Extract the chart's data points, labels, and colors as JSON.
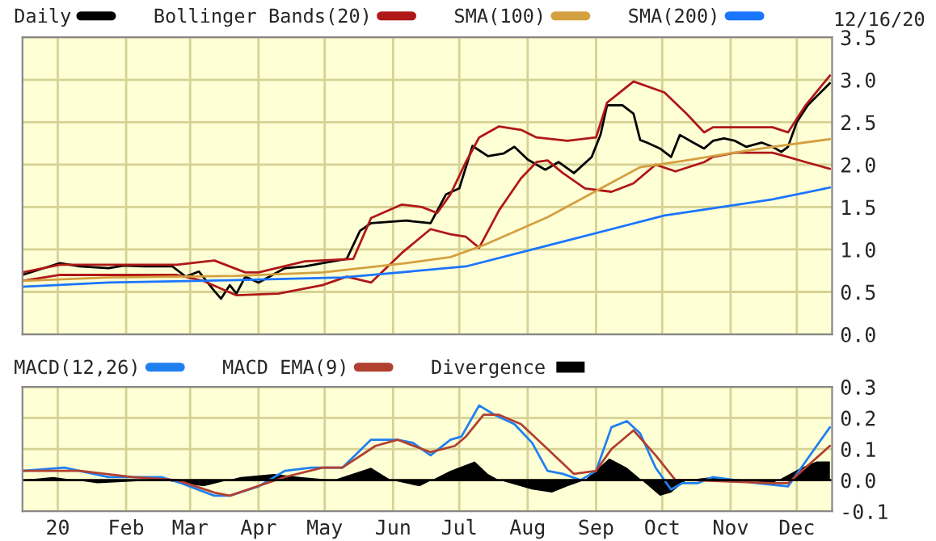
{
  "chart_data": [
    {
      "type": "line",
      "legend": "top",
      "grid": true,
      "tick_labels": "y",
      "marker": "none",
      "line_style": "solid",
      "annotations": [
        "12/16/20"
      ],
      "xlim": [
        "2019-12-16",
        "2020-12-17"
      ],
      "ylim": [
        0.0,
        3.5
      ],
      "yticks": [
        {
          "value": 0,
          "label": "0.0"
        },
        0.5,
        {
          "value": 1,
          "label": "1.0"
        },
        1.5,
        {
          "value": 2,
          "label": "2.0"
        },
        2.5,
        {
          "value": 3,
          "label": "3.0"
        },
        3.5
      ],
      "xticks": [
        {
          "value": "2020-01-01",
          "label": null
        },
        {
          "value": "2020-02-01",
          "label": null
        },
        {
          "value": "2020-03-01",
          "label": null
        },
        {
          "value": "2020-04-01",
          "label": null
        },
        {
          "value": "2020-05-01",
          "label": null
        },
        {
          "value": "2020-06-01",
          "label": null
        },
        {
          "value": "2020-07-01",
          "label": null
        },
        {
          "value": "2020-08-01",
          "label": null
        },
        {
          "value": "2020-09-01",
          "label": null
        },
        {
          "value": "2020-10-01",
          "label": null
        },
        {
          "value": "2020-11-01",
          "label": null
        },
        {
          "value": "2020-12-01",
          "label": null
        }
      ],
      "series": [
        {
          "name": "Daily",
          "color": "#000000",
          "x": [
            "2019-12-16",
            "2020-01-02",
            "2020-01-11",
            "2020-01-24",
            "2020-01-31",
            "2020-02-09",
            "2020-02-22",
            "2020-02-28",
            "2020-03-05",
            "2020-03-12",
            "2020-03-15",
            "2020-03-19",
            "2020-03-22",
            "2020-03-26",
            "2020-04-01",
            "2020-04-06",
            "2020-04-13",
            "2020-04-22",
            "2020-04-30",
            "2020-05-11",
            "2020-05-17",
            "2020-05-22",
            "2020-06-07",
            "2020-06-18",
            "2020-06-25",
            "2020-07-01",
            "2020-07-07",
            "2020-07-14",
            "2020-07-21",
            "2020-07-26",
            "2020-08-01",
            "2020-08-09",
            "2020-08-15",
            "2020-08-22",
            "2020-08-30",
            "2020-09-03",
            "2020-09-06",
            "2020-09-13",
            "2020-09-18",
            "2020-09-21",
            "2020-09-24",
            "2020-09-30",
            "2020-10-05",
            "2020-10-09",
            "2020-10-15",
            "2020-10-20",
            "2020-10-24",
            "2020-10-29",
            "2020-11-03",
            "2020-11-08",
            "2020-11-15",
            "2020-11-20",
            "2020-11-24",
            "2020-11-27",
            "2020-12-01",
            "2020-12-06",
            "2020-12-11",
            "2020-12-16"
          ],
          "values": [
            0.7,
            0.84,
            0.8,
            0.78,
            0.81,
            0.8,
            0.8,
            0.68,
            0.74,
            0.51,
            0.42,
            0.58,
            0.48,
            0.68,
            0.61,
            0.68,
            0.78,
            0.8,
            0.84,
            0.89,
            1.22,
            1.31,
            1.34,
            1.31,
            1.65,
            1.72,
            2.22,
            2.1,
            2.13,
            2.21,
            2.06,
            1.94,
            2.03,
            1.9,
            2.09,
            2.35,
            2.7,
            2.7,
            2.6,
            2.29,
            2.26,
            2.19,
            2.09,
            2.35,
            2.26,
            2.19,
            2.28,
            2.31,
            2.28,
            2.21,
            2.26,
            2.21,
            2.15,
            2.21,
            2.5,
            2.7,
            2.83,
            2.96
          ]
        },
        {
          "name": "Bollinger Bands(20)",
          "color": "#b01818",
          "x": [
            "2019-12-16",
            "2020-01-02",
            "2020-02-24",
            "2020-03-12",
            "2020-03-26",
            "2020-04-01",
            "2020-04-22",
            "2020-05-14",
            "2020-05-22",
            "2020-06-05",
            "2020-06-14",
            "2020-06-21",
            "2020-06-27",
            "2020-07-04",
            "2020-07-10",
            "2020-07-19",
            "2020-07-29",
            "2020-08-05",
            "2020-08-19",
            "2020-09-01",
            "2020-09-06",
            "2020-09-18",
            "2020-10-02",
            "2020-10-12",
            "2020-10-20",
            "2020-10-24",
            "2020-11-20",
            "2020-11-27",
            "2020-12-05",
            "2020-12-16"
          ],
          "values": [
            0.73,
            0.82,
            0.82,
            0.87,
            0.73,
            0.73,
            0.86,
            0.89,
            1.37,
            1.53,
            1.5,
            1.43,
            1.65,
            2.03,
            2.32,
            2.45,
            2.41,
            2.32,
            2.28,
            2.32,
            2.73,
            2.98,
            2.85,
            2.6,
            2.38,
            2.44,
            2.44,
            2.38,
            2.7,
            3.05
          ]
        },
        {
          "color": "#b01818",
          "x": [
            "2019-12-16",
            "2020-01-02",
            "2020-02-24",
            "2020-03-07",
            "2020-03-22",
            "2020-04-10",
            "2020-04-30",
            "2020-05-11",
            "2020-05-22",
            "2020-06-05",
            "2020-06-18",
            "2020-06-27",
            "2020-07-04",
            "2020-07-10",
            "2020-07-19",
            "2020-07-29",
            "2020-08-05",
            "2020-08-10",
            "2020-08-17",
            "2020-08-27",
            "2020-09-08",
            "2020-09-18",
            "2020-09-28",
            "2020-10-07",
            "2020-10-20",
            "2020-10-24",
            "2020-11-03",
            "2020-11-20",
            "2020-11-27",
            "2020-12-05",
            "2020-12-16"
          ],
          "values": [
            0.63,
            0.7,
            0.7,
            0.63,
            0.46,
            0.48,
            0.58,
            0.68,
            0.61,
            0.96,
            1.24,
            1.18,
            1.15,
            1.02,
            1.46,
            1.84,
            2.03,
            2.05,
            1.9,
            1.72,
            1.68,
            1.78,
            2.0,
            1.92,
            2.03,
            2.09,
            2.14,
            2.14,
            2.09,
            2.03,
            1.95
          ]
        },
        {
          "name": "SMA(100)",
          "color": "#d4a040",
          "x": [
            "2019-12-16",
            "2020-01-24",
            "2020-03-22",
            "2020-04-30",
            "2020-06-07",
            "2020-06-27",
            "2020-07-12",
            "2020-08-10",
            "2020-09-21",
            "2020-10-12",
            "2020-10-31",
            "2020-11-20",
            "2020-12-16"
          ],
          "values": [
            0.63,
            0.67,
            0.69,
            0.73,
            0.84,
            0.91,
            1.05,
            1.38,
            1.97,
            2.05,
            2.13,
            2.21,
            2.3
          ]
        },
        {
          "name": "SMA(200)",
          "color": "#1a75ff",
          "x": [
            "2019-12-16",
            "2020-01-24",
            "2020-03-22",
            "2020-05-09",
            "2020-05-31",
            "2020-07-04",
            "2020-08-15",
            "2020-10-02",
            "2020-11-20",
            "2020-12-16"
          ],
          "values": [
            0.56,
            0.61,
            0.64,
            0.67,
            0.72,
            0.8,
            1.08,
            1.4,
            1.59,
            1.73
          ]
        }
      ]
    },
    {
      "type": "line",
      "legend": "top",
      "grid": true,
      "marker": "none",
      "line_style": "solid",
      "xlim": [
        "2019-12-16",
        "2020-12-17"
      ],
      "ylim": [
        -0.1,
        0.3
      ],
      "yticks": [
        -0.1,
        {
          "value": 0,
          "label": "0.0"
        },
        0.1,
        0.2,
        0.3
      ],
      "xticks": [
        {
          "value": "2020-01-01",
          "label": "20"
        },
        {
          "value": "2020-02-01",
          "label": "Feb"
        },
        {
          "value": "2020-03-01",
          "label": "Mar"
        },
        {
          "value": "2020-04-01",
          "label": "Apr"
        },
        {
          "value": "2020-05-01",
          "label": "May"
        },
        {
          "value": "2020-06-01",
          "label": "Jun"
        },
        {
          "value": "2020-07-01",
          "label": "Jul"
        },
        {
          "value": "2020-08-01",
          "label": "Aug"
        },
        {
          "value": "2020-09-01",
          "label": "Sep"
        },
        {
          "value": "2020-10-01",
          "label": "Oct"
        },
        {
          "value": "2020-11-01",
          "label": "Nov"
        },
        {
          "value": "2020-12-01",
          "label": "Dec"
        }
      ],
      "series": [
        {
          "name": "MACD(12,26)",
          "color": "#2080f0",
          "x": [
            "2019-12-16",
            "2020-01-04",
            "2020-01-24",
            "2020-02-17",
            "2020-02-26",
            "2020-03-12",
            "2020-03-19",
            "2020-04-01",
            "2020-04-13",
            "2020-04-25",
            "2020-05-09",
            "2020-05-22",
            "2020-06-03",
            "2020-06-10",
            "2020-06-18",
            "2020-06-27",
            "2020-07-02",
            "2020-07-10",
            "2020-07-17",
            "2020-07-26",
            "2020-08-03",
            "2020-08-10",
            "2020-08-17",
            "2020-08-25",
            "2020-09-01",
            "2020-09-08",
            "2020-09-15",
            "2020-09-21",
            "2020-09-28",
            "2020-10-05",
            "2020-10-10",
            "2020-10-17",
            "2020-10-24",
            "2020-11-03",
            "2020-11-13",
            "2020-11-27",
            "2020-12-05",
            "2020-12-16"
          ],
          "values": [
            0.03,
            0.04,
            0.01,
            0.01,
            -0.01,
            -0.05,
            -0.05,
            -0.02,
            0.03,
            0.04,
            0.04,
            0.13,
            0.13,
            0.12,
            0.08,
            0.13,
            0.14,
            0.24,
            0.21,
            0.18,
            0.12,
            0.03,
            0.02,
            0.0,
            0.03,
            0.17,
            0.19,
            0.15,
            0.04,
            -0.03,
            -0.01,
            -0.01,
            0.01,
            0.0,
            -0.01,
            -0.02,
            0.06,
            0.17
          ]
        },
        {
          "name": "MACD EMA(9)",
          "color": "#b04030",
          "x": [
            "2019-12-16",
            "2020-01-11",
            "2020-02-04",
            "2020-02-24",
            "2020-03-12",
            "2020-03-19",
            "2020-04-13",
            "2020-04-30",
            "2020-05-09",
            "2020-05-24",
            "2020-06-03",
            "2020-06-18",
            "2020-06-29",
            "2020-07-04",
            "2020-07-12",
            "2020-07-19",
            "2020-07-29",
            "2020-08-10",
            "2020-08-22",
            "2020-09-01",
            "2020-09-08",
            "2020-09-18",
            "2020-09-28",
            "2020-10-07",
            "2020-10-15",
            "2020-11-20",
            "2020-11-27",
            "2020-12-16"
          ],
          "values": [
            0.03,
            0.03,
            0.01,
            0.0,
            -0.04,
            -0.05,
            0.01,
            0.04,
            0.04,
            0.11,
            0.13,
            0.09,
            0.11,
            0.14,
            0.21,
            0.21,
            0.18,
            0.1,
            0.02,
            0.03,
            0.1,
            0.16,
            0.08,
            0.0,
            0.0,
            -0.01,
            -0.01,
            0.11
          ]
        },
        {
          "name": "Divergence",
          "type": "area",
          "color": "#000000",
          "x": [
            "2019-12-16",
            "2019-12-30",
            "2020-01-19",
            "2020-02-17",
            "2020-03-07",
            "2020-03-24",
            "2020-04-08",
            "2020-04-20",
            "2020-05-05",
            "2020-05-22",
            "2020-05-31",
            "2020-06-13",
            "2020-06-27",
            "2020-07-08",
            "2020-07-14",
            "2020-07-19",
            "2020-08-03",
            "2020-08-12",
            "2020-08-19",
            "2020-08-27",
            "2020-09-07",
            "2020-09-15",
            "2020-09-25",
            "2020-09-30",
            "2020-10-05",
            "2020-10-12",
            "2020-10-24",
            "2020-11-20",
            "2020-12-03",
            "2020-12-10",
            "2020-12-16"
          ],
          "values": [
            0.0,
            0.01,
            -0.01,
            0.0,
            -0.02,
            0.01,
            0.02,
            0.01,
            0.0,
            0.04,
            0.0,
            -0.02,
            0.03,
            0.06,
            0.02,
            0.0,
            -0.03,
            -0.04,
            -0.02,
            0.0,
            0.07,
            0.04,
            -0.02,
            -0.05,
            -0.04,
            0.0,
            0.01,
            -0.01,
            0.04,
            0.06,
            0.06
          ]
        }
      ]
    }
  ]
}
